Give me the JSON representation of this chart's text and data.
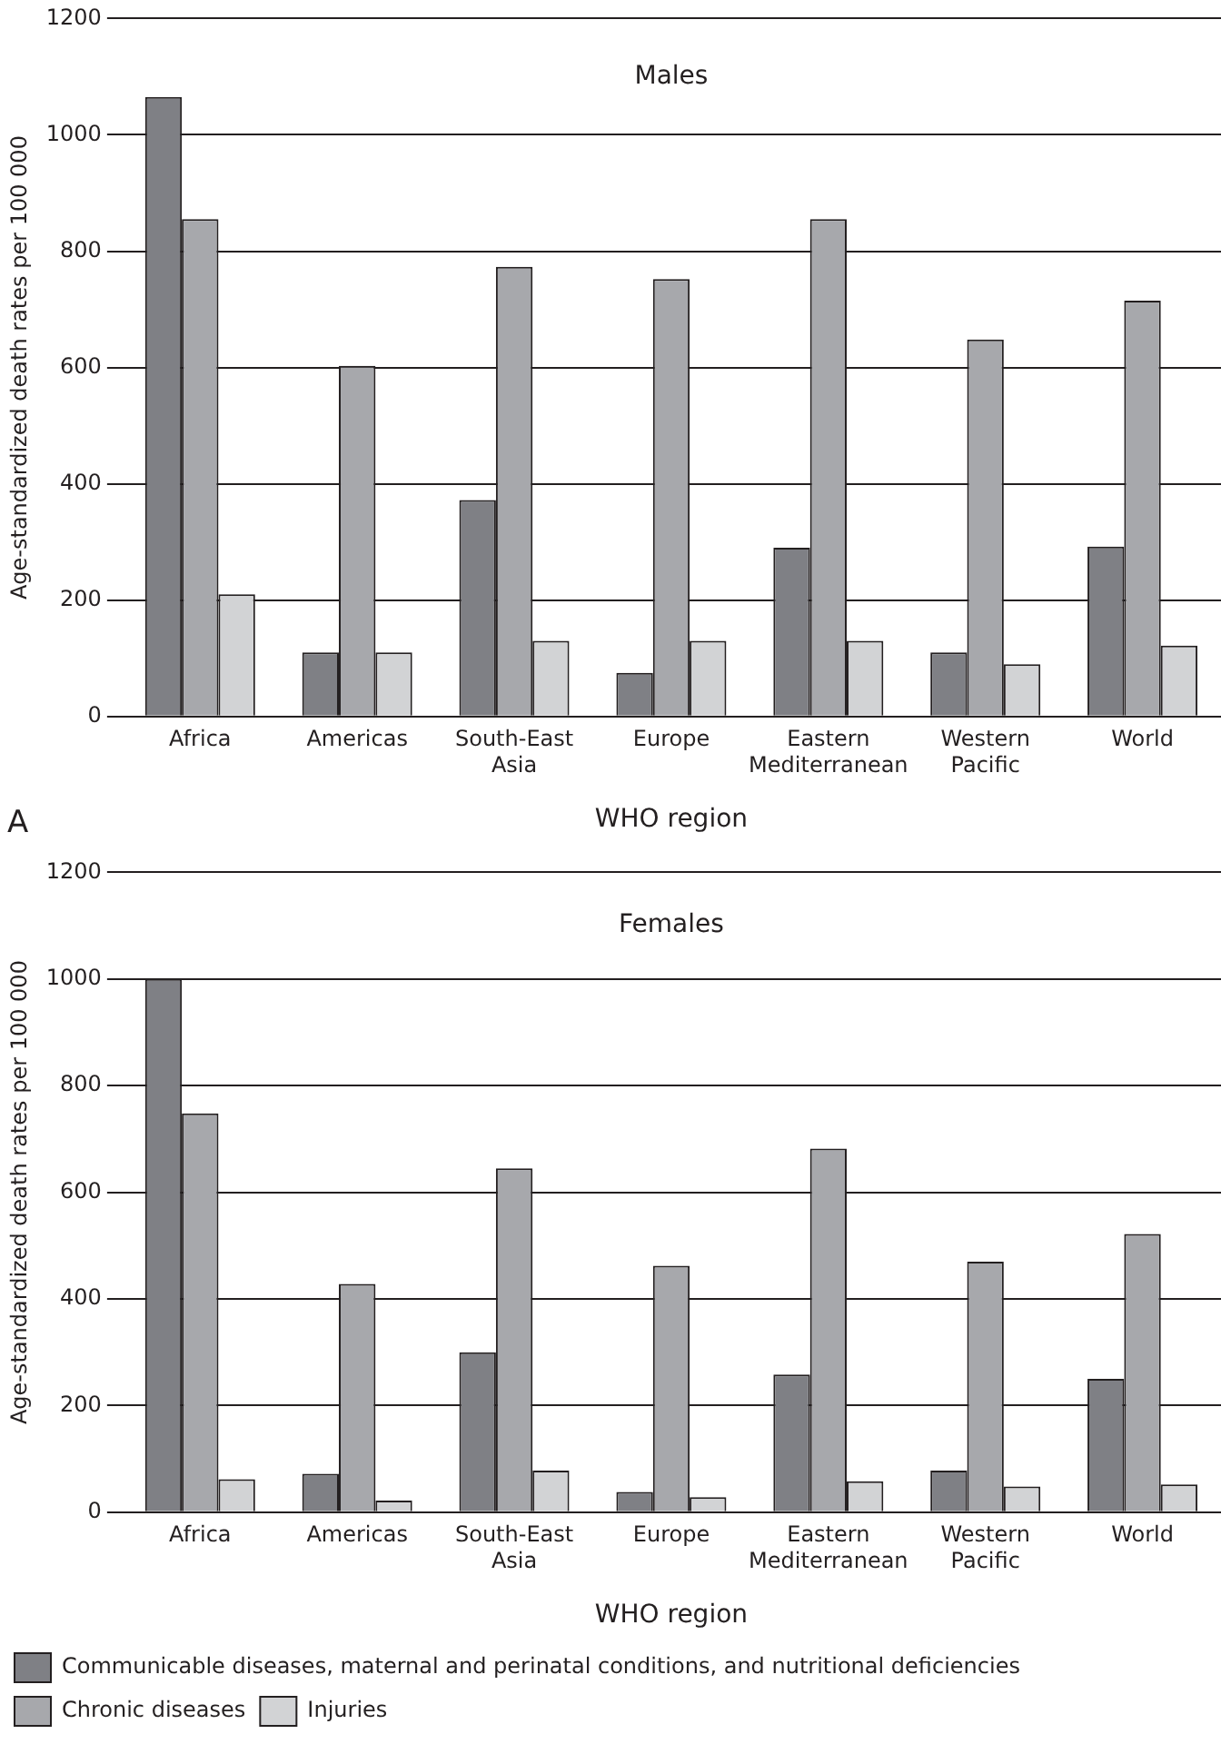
{
  "chart_data": [
    {
      "type": "bar",
      "title": "Males",
      "xlabel": "WHO region",
      "ylabel": "Age-standardized death rates per 100 000",
      "categories": [
        "Africa",
        "Americas",
        "South-East Asia",
        "Europe",
        "Eastern Mediterranean",
        "Western Pacific",
        "World"
      ],
      "series": [
        {
          "color": "#7f8085",
          "values": [
            1065,
            110,
            372,
            75,
            290,
            110,
            292
          ]
        },
        {
          "color": "#a7a8ac",
          "values": [
            855,
            603,
            773,
            752,
            855,
            648,
            715
          ]
        },
        {
          "color": "#d2d3d5",
          "values": [
            210,
            110,
            130,
            130,
            130,
            90,
            122
          ]
        }
      ],
      "ylim": [
        0,
        1200
      ],
      "yticks": [
        0,
        200,
        400,
        600,
        800,
        1000,
        1200
      ],
      "grid": "y",
      "annotations": [
        "A"
      ]
    },
    {
      "type": "bar",
      "title": "Females",
      "xlabel": "WHO region",
      "ylabel": "Age-standardized death rates per 100 000",
      "categories": [
        "Africa",
        "Americas",
        "South-East Asia",
        "Europe",
        "Eastern Mediterranean",
        "Western Pacific",
        "World"
      ],
      "series": [
        {
          "name": "Communicable diseases, maternal and perinatal conditions, and nutritional deficiencies",
          "color": "#7f8085",
          "values": [
            1000,
            72,
            300,
            38,
            258,
            78,
            250
          ]
        },
        {
          "name": "Chronic diseases",
          "color": "#a7a8ac",
          "values": [
            748,
            428,
            645,
            462,
            682,
            470,
            522
          ]
        },
        {
          "name": "Injuries",
          "color": "#d2d3d5",
          "values": [
            62,
            22,
            78,
            28,
            58,
            48,
            52
          ]
        }
      ],
      "ylim": [
        0,
        1200
      ],
      "yticks": [
        0,
        200,
        400,
        600,
        800,
        1000,
        1200
      ],
      "grid": "y",
      "legend": "bottom"
    }
  ]
}
